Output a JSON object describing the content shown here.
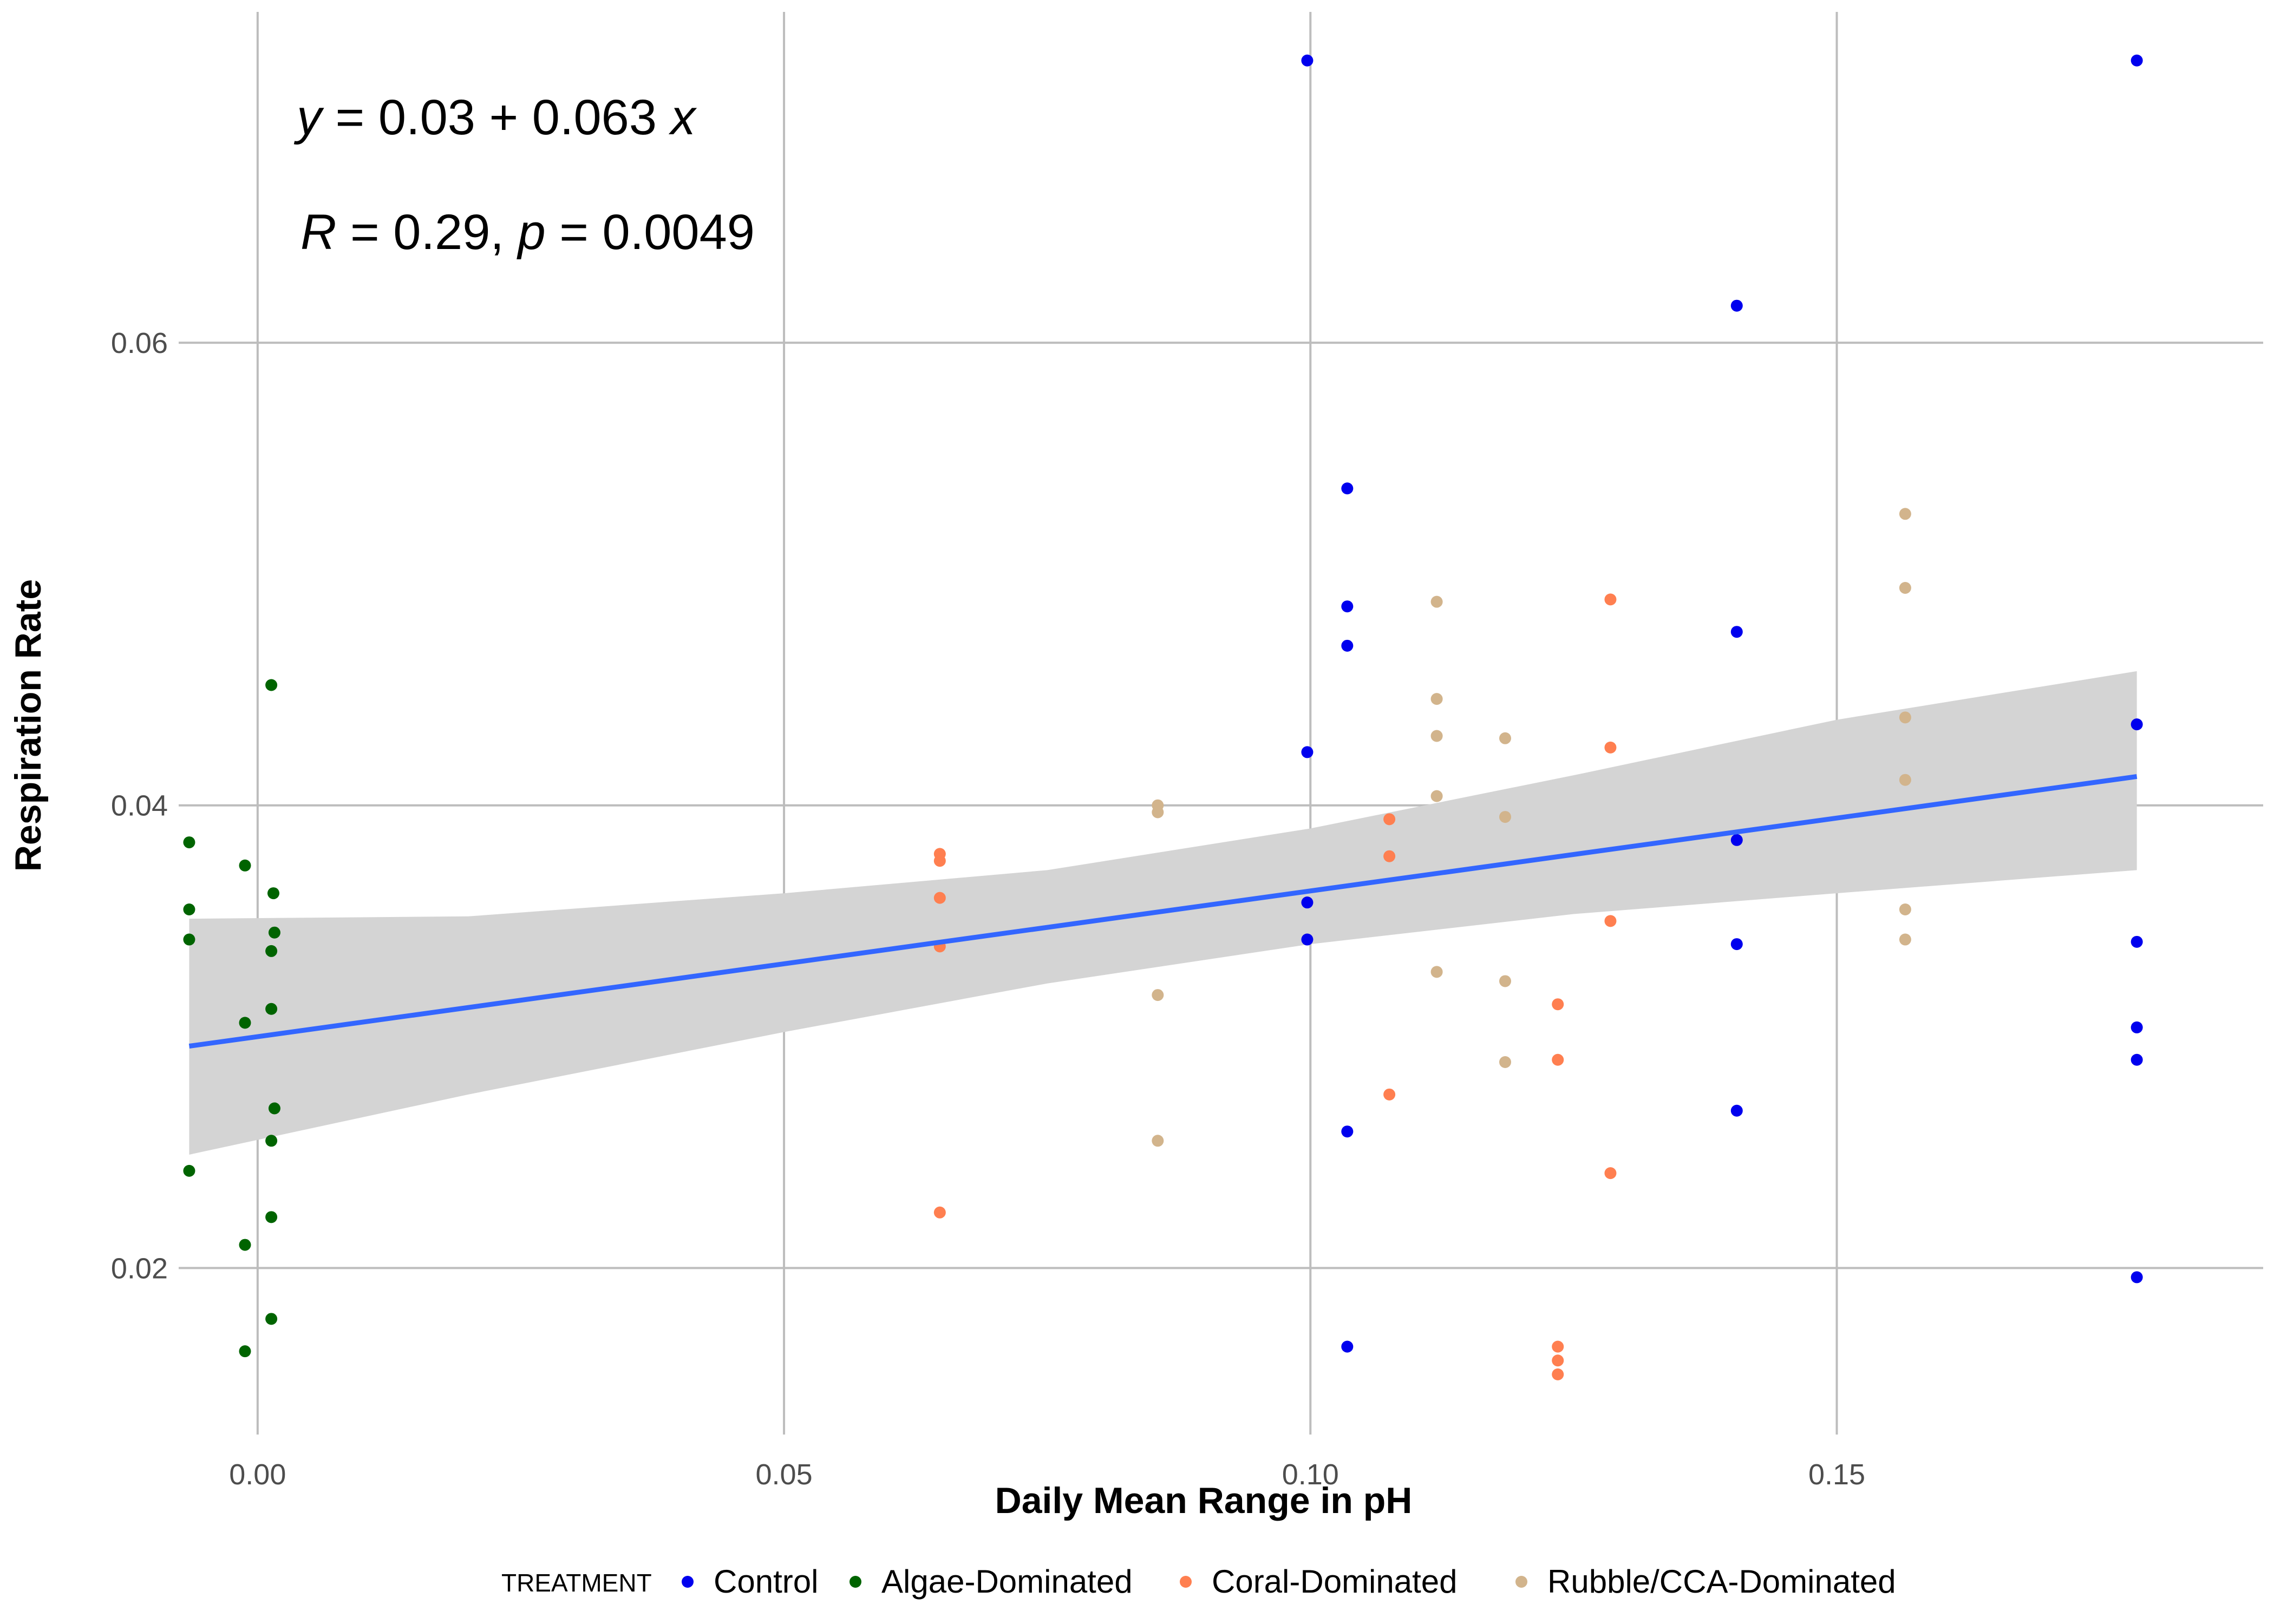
{
  "chart_data": {
    "type": "scatter",
    "xlabel": "Daily Mean Range in pH",
    "ylabel": "Respiration Rate",
    "xlim": [
      -0.0075,
      0.1905
    ],
    "ylim": [
      0.0128,
      0.0743
    ],
    "x_ticks": [
      0.0,
      0.05,
      0.1,
      0.15
    ],
    "x_tick_labels": [
      "0.00",
      "0.05",
      "0.10",
      "0.15"
    ],
    "y_ticks": [
      0.02,
      0.04,
      0.06
    ],
    "y_tick_labels": [
      "0.02",
      "0.04",
      "0.06"
    ],
    "grid": true,
    "legend_position": "bottom",
    "legend_title": "TREATMENT",
    "annotations": {
      "equation": {
        "lhs": "y",
        "rest": " = 0.03 + 0.063 ",
        "x": "x"
      },
      "stats": {
        "r": "R",
        "r_rest": " = 0.29, ",
        "p": "p",
        "p_rest": " = 0.0049"
      }
    },
    "fit": {
      "intercept": 0.03,
      "slope": 0.063,
      "x_range": [
        -0.0065,
        0.1785
      ],
      "color": "#3366ff",
      "band_color": "#d4d4d4",
      "band": [
        {
          "x": -0.0065,
          "lo": 0.0249,
          "hi": 0.0351
        },
        {
          "x": 0.02,
          "lo": 0.0275,
          "hi": 0.0352
        },
        {
          "x": 0.05,
          "lo": 0.0302,
          "hi": 0.0362
        },
        {
          "x": 0.075,
          "lo": 0.0323,
          "hi": 0.0372
        },
        {
          "x": 0.1,
          "lo": 0.034,
          "hi": 0.039
        },
        {
          "x": 0.125,
          "lo": 0.0353,
          "hi": 0.0413
        },
        {
          "x": 0.15,
          "lo": 0.0362,
          "hi": 0.0437
        },
        {
          "x": 0.1785,
          "lo": 0.0372,
          "hi": 0.0458
        }
      ]
    },
    "series": [
      {
        "name": "Control",
        "color": "#0000ee",
        "points": [
          [
            0.0997,
            0.0722
          ],
          [
            0.1785,
            0.0722
          ],
          [
            0.1405,
            0.0616
          ],
          [
            0.1035,
            0.0537
          ],
          [
            0.1035,
            0.0486
          ],
          [
            0.1035,
            0.0469
          ],
          [
            0.1405,
            0.0475
          ],
          [
            0.0997,
            0.0423
          ],
          [
            0.1785,
            0.0435
          ],
          [
            0.1405,
            0.0385
          ],
          [
            0.0997,
            0.0358
          ],
          [
            0.0997,
            0.0342
          ],
          [
            0.1405,
            0.034
          ],
          [
            0.1785,
            0.0341
          ],
          [
            0.1785,
            0.0304
          ],
          [
            0.1785,
            0.029
          ],
          [
            0.1405,
            0.0268
          ],
          [
            0.1035,
            0.0259
          ],
          [
            0.1785,
            0.0196
          ],
          [
            0.1035,
            0.0166
          ]
        ]
      },
      {
        "name": "Algae-Dominated",
        "color": "#006400",
        "points": [
          [
            0.0013,
            0.0452
          ],
          [
            -0.0065,
            0.0384
          ],
          [
            -0.0012,
            0.0374
          ],
          [
            0.0015,
            0.0362
          ],
          [
            -0.0065,
            0.0355
          ],
          [
            -0.0065,
            0.0342
          ],
          [
            0.0016,
            0.0345
          ],
          [
            0.0013,
            0.0337
          ],
          [
            0.0013,
            0.0312
          ],
          [
            -0.0012,
            0.0306
          ],
          [
            0.0016,
            0.0269
          ],
          [
            0.0013,
            0.0255
          ],
          [
            -0.0065,
            0.0242
          ],
          [
            0.0013,
            0.0222
          ],
          [
            -0.0012,
            0.021
          ],
          [
            0.0013,
            0.0178
          ],
          [
            -0.0012,
            0.0164
          ]
        ]
      },
      {
        "name": "Coral-Dominated",
        "color": "#ff7f50",
        "points": [
          [
            0.1285,
            0.0489
          ],
          [
            0.1285,
            0.0425
          ],
          [
            0.1075,
            0.0394
          ],
          [
            0.1075,
            0.0378
          ],
          [
            0.0648,
            0.0379
          ],
          [
            0.0648,
            0.0376
          ],
          [
            0.0648,
            0.036
          ],
          [
            0.0648,
            0.0339
          ],
          [
            0.1285,
            0.035
          ],
          [
            0.1235,
            0.0314
          ],
          [
            0.1235,
            0.029
          ],
          [
            0.1075,
            0.0275
          ],
          [
            0.1285,
            0.0241
          ],
          [
            0.0648,
            0.0224
          ],
          [
            0.1235,
            0.0166
          ],
          [
            0.1235,
            0.016
          ],
          [
            0.1235,
            0.0154
          ]
        ]
      },
      {
        "name": "Rubble/CCA-Dominated",
        "color": "#d2b48c",
        "points": [
          [
            0.1565,
            0.0526
          ],
          [
            0.1565,
            0.0494
          ],
          [
            0.112,
            0.0488
          ],
          [
            0.112,
            0.0446
          ],
          [
            0.1565,
            0.0438
          ],
          [
            0.112,
            0.043
          ],
          [
            0.1185,
            0.0429
          ],
          [
            0.1565,
            0.0411
          ],
          [
            0.112,
            0.0404
          ],
          [
            0.0855,
            0.04
          ],
          [
            0.0855,
            0.0397
          ],
          [
            0.1185,
            0.0395
          ],
          [
            0.1565,
            0.0355
          ],
          [
            0.1565,
            0.0342
          ],
          [
            0.112,
            0.0328
          ],
          [
            0.1185,
            0.0324
          ],
          [
            0.0855,
            0.0318
          ],
          [
            0.1185,
            0.0289
          ],
          [
            0.0855,
            0.0255
          ]
        ]
      }
    ]
  }
}
